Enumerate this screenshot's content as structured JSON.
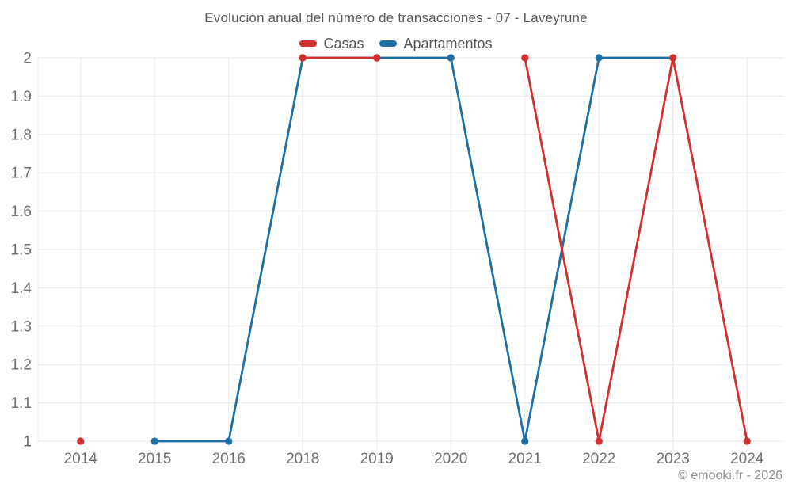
{
  "chart_data": {
    "type": "line",
    "title": "Evolución anual del número de transacciones - 07 - Laveyrune",
    "categories": [
      "2014",
      "2015",
      "2016",
      "2018",
      "2019",
      "2020",
      "2021",
      "2022",
      "2023",
      "2024"
    ],
    "series": [
      {
        "name": "Casas",
        "color": "#d32f2f",
        "values": [
          1,
          null,
          null,
          2,
          2,
          null,
          2,
          1,
          2,
          1
        ]
      },
      {
        "name": "Apartamentos",
        "color": "#1d6fa5",
        "values": [
          null,
          1,
          1,
          2,
          2,
          2,
          1,
          2,
          2,
          null
        ]
      }
    ],
    "ylim": [
      1,
      2
    ],
    "y_tick_labels": [
      "1",
      "1.1",
      "1.2",
      "1.3",
      "1.4",
      "1.5",
      "1.6",
      "1.7",
      "1.8",
      "1.9",
      "2"
    ],
    "xlabel": "",
    "ylabel": "",
    "grid": true,
    "legend_position": "top"
  },
  "colors": {
    "grid": "#e9e9e9",
    "tick_text": "#6d7073",
    "title_text": "#58595b",
    "watermark_text": "#8e9093"
  },
  "watermark": "© emooki.fr - 2026"
}
